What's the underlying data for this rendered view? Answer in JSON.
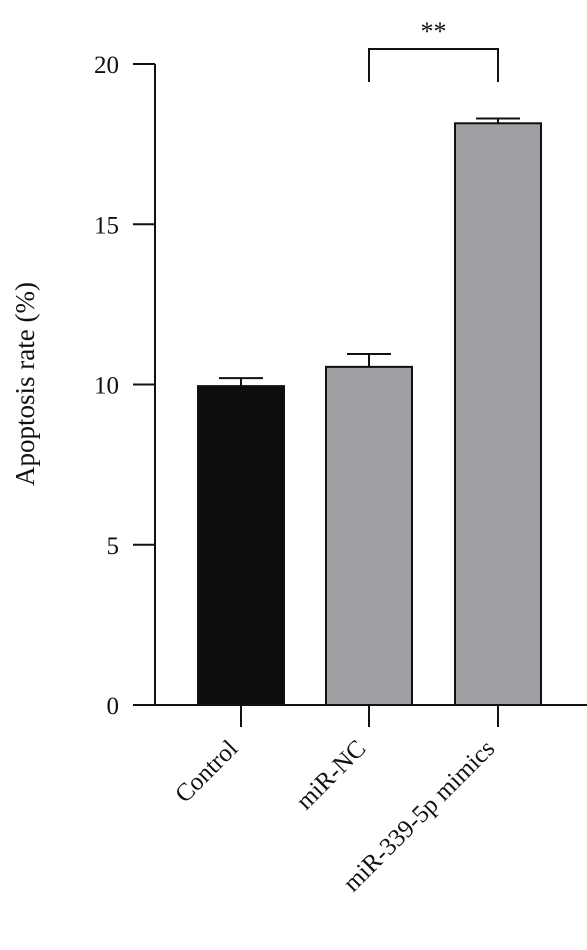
{
  "chart_data": {
    "type": "bar",
    "categories": [
      "Control",
      "miR-NC",
      "miR-339-5p mimics"
    ],
    "values": [
      9.95,
      10.55,
      18.15
    ],
    "errors": [
      0.25,
      0.4,
      0.15
    ],
    "bar_colors": [
      "#0d0d0f",
      "#9fa0a3",
      "#9fa0a3"
    ],
    "ylabel": "Apoptosis rate (%)",
    "ylim": [
      0,
      20
    ],
    "yticks": [
      "0",
      "5",
      "10",
      "15",
      "20"
    ],
    "significance": {
      "label": "**",
      "from": 1,
      "to": 2
    },
    "grid": false,
    "legend": "none"
  }
}
